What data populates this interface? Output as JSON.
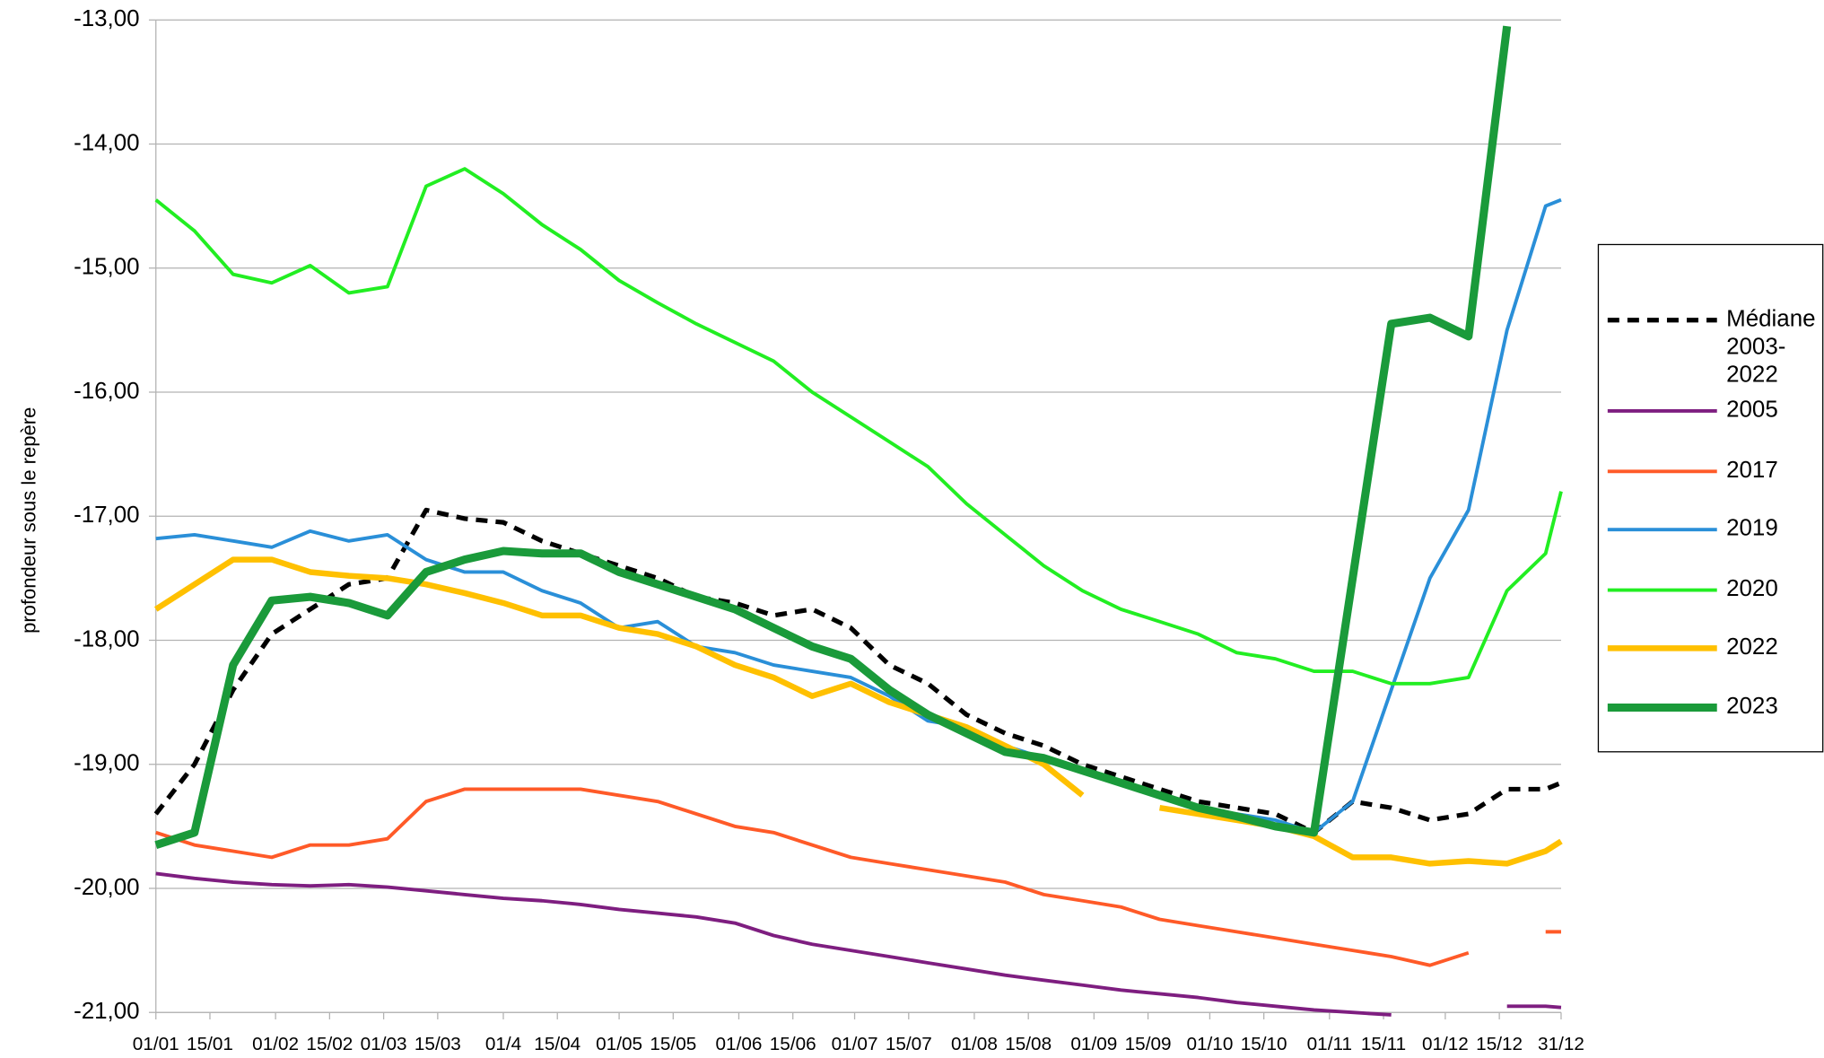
{
  "chart_data": {
    "type": "line",
    "y_label": "profondeur sous le repère",
    "x": [
      1,
      11,
      21,
      31,
      41,
      51,
      61,
      71,
      81,
      91,
      101,
      111,
      121,
      131,
      141,
      151,
      161,
      171,
      181,
      191,
      201,
      211,
      221,
      231,
      241,
      251,
      261,
      271,
      281,
      291,
      301,
      311,
      321,
      331,
      341,
      351,
      361,
      365
    ],
    "xlim": [
      1,
      365
    ],
    "xticks": [
      {
        "value": 1,
        "label": "01/01"
      },
      {
        "value": 15,
        "label": "15/01"
      },
      {
        "value": 32,
        "label": "01/02"
      },
      {
        "value": 46,
        "label": "15/02"
      },
      {
        "value": 60,
        "label": "01/03"
      },
      {
        "value": 74,
        "label": "15/03"
      },
      {
        "value": 91,
        "label": "01/4"
      },
      {
        "value": 105,
        "label": "15/04"
      },
      {
        "value": 121,
        "label": "01/05"
      },
      {
        "value": 135,
        "label": "15/05"
      },
      {
        "value": 152,
        "label": "01/06"
      },
      {
        "value": 166,
        "label": "15/06"
      },
      {
        "value": 182,
        "label": "01/07"
      },
      {
        "value": 196,
        "label": "15/07"
      },
      {
        "value": 213,
        "label": "01/08"
      },
      {
        "value": 227,
        "label": "15/08"
      },
      {
        "value": 244,
        "label": "01/09"
      },
      {
        "value": 258,
        "label": "15/09"
      },
      {
        "value": 274,
        "label": "01/10"
      },
      {
        "value": 288,
        "label": "15/10"
      },
      {
        "value": 305,
        "label": "01/11"
      },
      {
        "value": 319,
        "label": "15/11"
      },
      {
        "value": 335,
        "label": "01/12"
      },
      {
        "value": 349,
        "label": "15/12"
      },
      {
        "value": 365,
        "label": "31/12"
      }
    ],
    "ylim": [
      -21,
      -13
    ],
    "yticks": [
      {
        "value": -21,
        "label": "-21,00"
      },
      {
        "value": -20,
        "label": "-20,00"
      },
      {
        "value": -19,
        "label": "-19,00"
      },
      {
        "value": -18,
        "label": "-18,00"
      },
      {
        "value": -17,
        "label": "-17,00"
      },
      {
        "value": -16,
        "label": "-16,00"
      },
      {
        "value": -15,
        "label": "-15,00"
      },
      {
        "value": -14,
        "label": "-14,00"
      },
      {
        "value": -13,
        "label": "-13,00"
      }
    ],
    "grid": true,
    "legend": "right",
    "series": [
      {
        "name": "Médiane 2003-2022",
        "color": "#000000",
        "line_style": "dashed",
        "line_width": 4,
        "values": [
          -19.4,
          -19.0,
          -18.4,
          -17.95,
          -17.75,
          -17.55,
          -17.5,
          -16.95,
          -17.02,
          -17.05,
          -17.2,
          -17.3,
          -17.4,
          -17.5,
          -17.65,
          -17.7,
          -17.8,
          -17.75,
          -17.9,
          -18.2,
          -18.35,
          -18.6,
          -18.75,
          -18.85,
          -19.0,
          -19.1,
          -19.2,
          -19.3,
          -19.35,
          -19.4,
          -19.55,
          -19.3,
          -19.35,
          -19.45,
          -19.4,
          -19.2,
          -19.2,
          -19.15
        ]
      },
      {
        "name": "2005",
        "color": "#7e1e80",
        "line_style": "solid",
        "line_width": 3,
        "values": [
          -19.88,
          -19.92,
          -19.95,
          -19.97,
          -19.98,
          -19.97,
          -19.99,
          -20.02,
          -20.05,
          -20.08,
          -20.1,
          -20.13,
          -20.17,
          -20.2,
          -20.23,
          -20.28,
          -20.38,
          -20.45,
          -20.5,
          -20.55,
          -20.6,
          -20.65,
          -20.7,
          -20.74,
          -20.78,
          -20.82,
          -20.85,
          -20.88,
          -20.92,
          -20.95,
          -20.98,
          -21.0,
          -21.02,
          null,
          null,
          -20.95,
          -20.95,
          -20.96
        ]
      },
      {
        "name": "2017",
        "color": "#ff5a28",
        "line_style": "solid",
        "line_width": 3,
        "values": [
          -19.55,
          -19.65,
          -19.7,
          -19.75,
          -19.65,
          -19.65,
          -19.6,
          -19.3,
          -19.2,
          -19.2,
          -19.2,
          -19.2,
          -19.25,
          -19.3,
          -19.4,
          -19.5,
          -19.55,
          -19.65,
          -19.75,
          -19.8,
          -19.85,
          -19.9,
          -19.95,
          -20.05,
          -20.1,
          -20.15,
          -20.25,
          -20.3,
          -20.35,
          -20.4,
          -20.45,
          -20.5,
          -20.55,
          -20.62,
          -20.52,
          null,
          -20.35,
          -20.35
        ]
      },
      {
        "name": "2019",
        "color": "#2a8fd8",
        "line_style": "solid",
        "line_width": 3,
        "values": [
          -17.18,
          -17.15,
          -17.2,
          -17.25,
          -17.12,
          -17.2,
          -17.15,
          -17.35,
          -17.45,
          -17.45,
          -17.6,
          -17.7,
          -17.9,
          -17.85,
          -18.05,
          -18.1,
          -18.2,
          -18.25,
          -18.3,
          -18.45,
          -18.65,
          -18.7,
          -18.85,
          -18.95,
          -19.05,
          -19.15,
          -19.25,
          -19.35,
          -19.4,
          -19.45,
          -19.55,
          -19.3,
          -18.4,
          -17.5,
          -16.95,
          -15.5,
          -14.5,
          -14.45
        ]
      },
      {
        "name": "2020",
        "color": "#22ee22",
        "line_style": "solid",
        "line_width": 3,
        "values": [
          -14.45,
          -14.7,
          -15.05,
          -15.12,
          -14.98,
          -15.2,
          -15.15,
          -14.34,
          -14.2,
          -14.4,
          -14.65,
          -14.85,
          -15.1,
          -15.28,
          -15.45,
          -15.6,
          -15.75,
          -16.0,
          -16.2,
          -16.4,
          -16.6,
          -16.9,
          -17.15,
          -17.4,
          -17.6,
          -17.75,
          -17.85,
          -17.95,
          -18.1,
          -18.15,
          -18.25,
          -18.25,
          -18.35,
          -18.35,
          -18.3,
          -17.6,
          -17.3,
          -16.8
        ]
      },
      {
        "name": "2022",
        "color": "#ffc000",
        "line_style": "solid",
        "line_width": 5,
        "values": [
          -17.75,
          -17.55,
          -17.35,
          -17.35,
          -17.45,
          -17.48,
          -17.5,
          -17.55,
          -17.62,
          -17.7,
          -17.8,
          -17.8,
          -17.9,
          -17.95,
          -18.05,
          -18.2,
          -18.3,
          -18.45,
          -18.35,
          -18.5,
          -18.6,
          -18.7,
          -18.85,
          -19.0,
          -19.25,
          null,
          -19.35,
          -19.4,
          -19.45,
          -19.5,
          -19.58,
          -19.75,
          -19.75,
          -19.8,
          -19.78,
          -19.8,
          -19.7,
          -19.62
        ]
      },
      {
        "name": "2023",
        "color": "#1a9a3a",
        "line_style": "solid",
        "line_width": 7,
        "values": [
          -19.65,
          -19.55,
          -18.2,
          -17.68,
          -17.65,
          -17.7,
          -17.8,
          -17.45,
          -17.35,
          -17.28,
          -17.3,
          -17.3,
          -17.45,
          -17.55,
          -17.65,
          -17.75,
          -17.9,
          -18.05,
          -18.15,
          -18.4,
          -18.6,
          -18.75,
          -18.9,
          -18.95,
          -19.05,
          -19.15,
          -19.25,
          -19.35,
          -19.42,
          -19.5,
          -19.55,
          -17.5,
          -15.45,
          -15.4,
          -15.55,
          -13.05,
          null,
          null
        ]
      }
    ]
  }
}
